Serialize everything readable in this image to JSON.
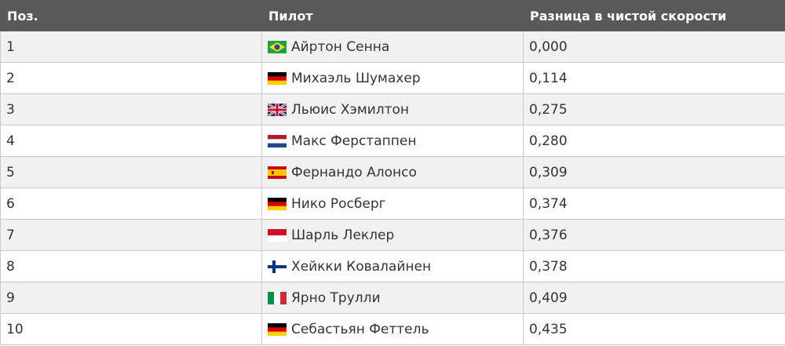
{
  "table": {
    "header": [
      "Поз.",
      "Пилот",
      "Разница в чистой скорости"
    ],
    "rows": [
      [
        "1",
        "Айртон Сенна",
        "0,000"
      ],
      [
        "2",
        "Михаэль Шумахер",
        "0,114"
      ],
      [
        "3",
        "Льюис Хэмилтон",
        "0,275"
      ],
      [
        "4",
        "Макс Ферстаппен",
        "0,280"
      ],
      [
        "5",
        "Фернандо Алонсо",
        "0,309"
      ],
      [
        "6",
        "Нико Росберг",
        "0,374"
      ],
      [
        "7",
        "Шарль Леклер",
        "0,376"
      ],
      [
        "8",
        "Хейкки Ковалайнен",
        "0,378"
      ],
      [
        "9",
        "Ярно Трулли",
        "0,409"
      ],
      [
        "10",
        "Себастьян Феттель",
        "0,435"
      ]
    ]
  }
}
